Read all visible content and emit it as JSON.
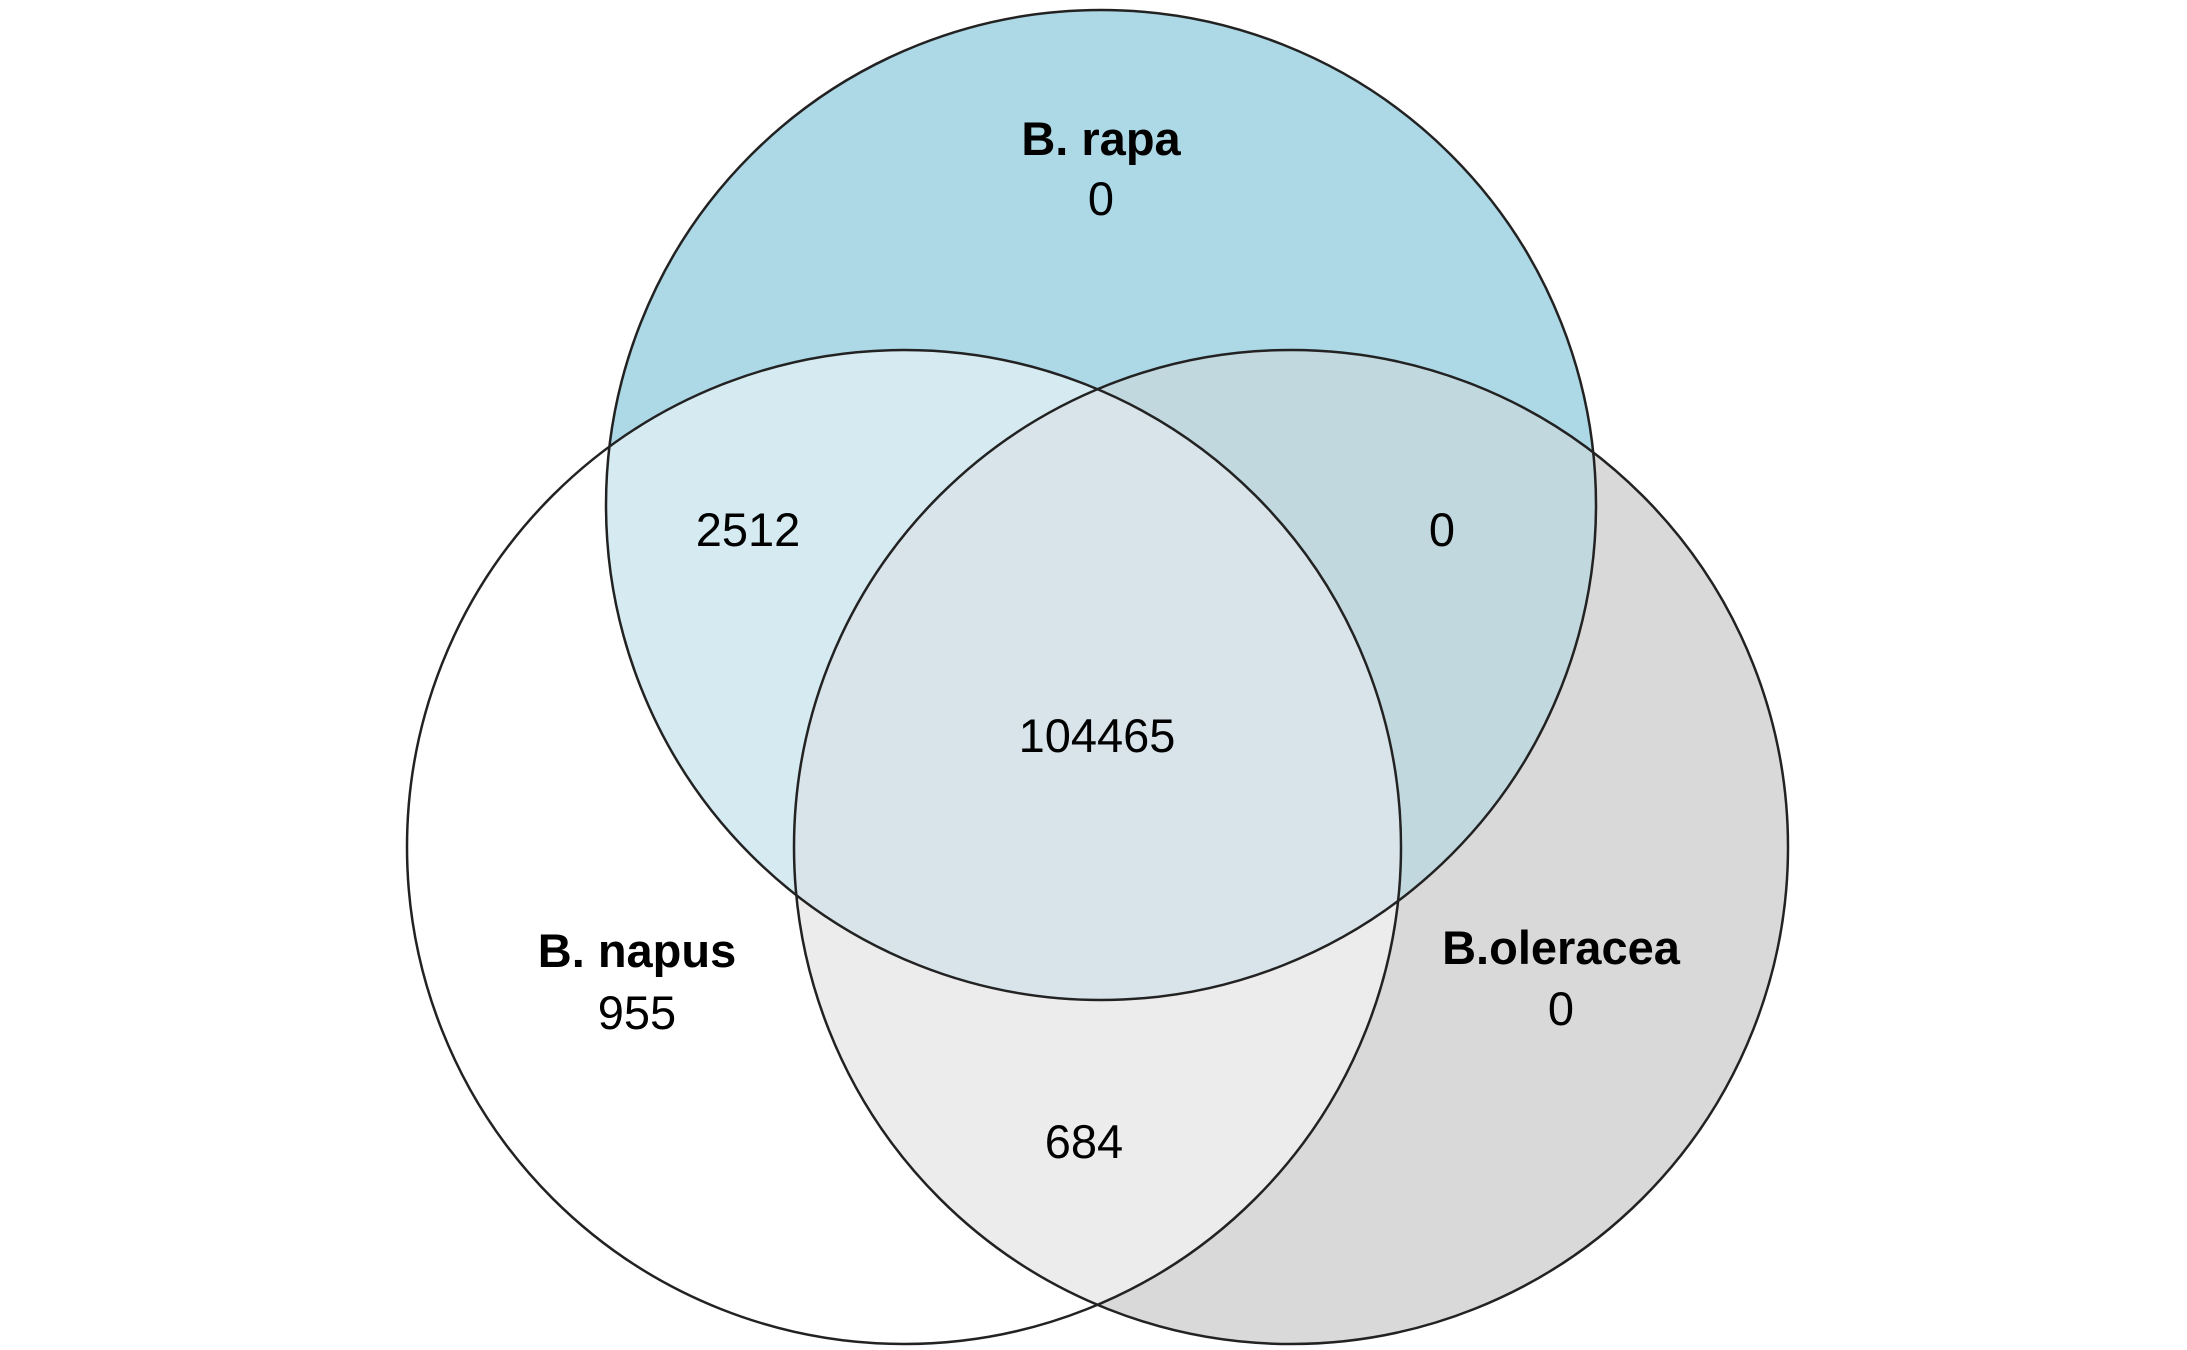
{
  "sets": {
    "rapa": {
      "label": "B. rapa",
      "only_count": "0",
      "fill_color": "#add8e6"
    },
    "napus": {
      "label": "B. napus",
      "only_count": "955",
      "fill_color": "#ffffff"
    },
    "oleracea": {
      "label": "B.oleracea",
      "only_count": "0",
      "fill_color": "#d9d9d9"
    }
  },
  "intersections": {
    "rapa_napus": "2512",
    "rapa_oleracea": "0",
    "napus_oleracea": "684",
    "all_three": "104465"
  },
  "colors": {
    "outline": "#222222",
    "rapa_napus": "#d6eaf1",
    "rapa_oleracea": "#c2d8df",
    "napus_oleracea": "#ececec",
    "all_three": "#d8e4ea"
  }
}
